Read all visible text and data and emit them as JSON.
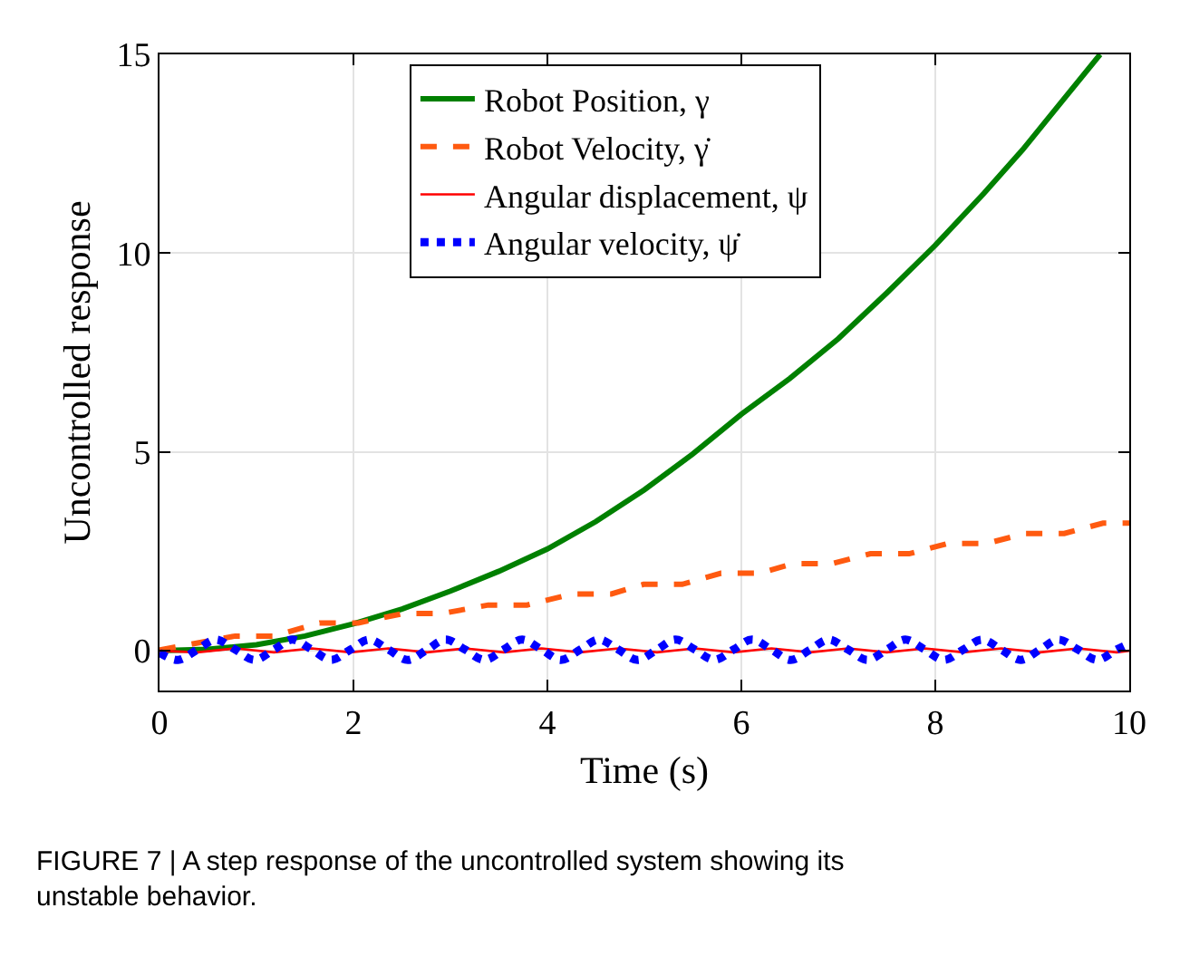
{
  "chart_data": {
    "type": "line",
    "xlabel": "Time (s)",
    "ylabel": "Uncontrolled response",
    "xlim": [
      0,
      10
    ],
    "ylim": [
      -1,
      15
    ],
    "xticks": [
      0,
      2,
      4,
      6,
      8,
      10
    ],
    "yticks": [
      0,
      5,
      10,
      15
    ],
    "grid": true,
    "legend": "top",
    "marker": "none",
    "annotations": [
      "FIGURE 7 | A step response of the uncontrolled system showing its unstable behavior."
    ],
    "series": [
      {
        "name": "Robot Position, γ",
        "color": "#008000",
        "line_style": "solid",
        "x": [
          0,
          0.5,
          1,
          1.5,
          2,
          2.5,
          3,
          3.5,
          4,
          4.5,
          5,
          5.5,
          6,
          6.5,
          7,
          7.5,
          8,
          8.5,
          8.9,
          9.3,
          9.7
        ],
        "values": [
          0,
          0.04,
          0.15,
          0.37,
          0.68,
          1.05,
          1.5,
          2.0,
          2.56,
          3.25,
          4.05,
          4.95,
          5.95,
          6.85,
          7.85,
          9.0,
          10.2,
          11.5,
          12.6,
          13.8,
          15
        ]
      },
      {
        "name": "Robot Velocity, γ̇",
        "color": "#ff5a10",
        "line_style": "dashed",
        "x": [
          0,
          0.78,
          1.18,
          1.65,
          2.05,
          2.52,
          2.92,
          3.39,
          3.79,
          4.26,
          4.66,
          4.99,
          5.39,
          5.79,
          6.19,
          6.53,
          6.93,
          7.33,
          7.73,
          8.13,
          8.53,
          8.93,
          9.33,
          9.73,
          10
        ],
        "values": [
          0.02,
          0.37,
          0.37,
          0.7,
          0.7,
          0.94,
          0.94,
          1.15,
          1.15,
          1.43,
          1.43,
          1.67,
          1.67,
          1.95,
          1.95,
          2.19,
          2.19,
          2.44,
          2.44,
          2.7,
          2.7,
          2.95,
          2.95,
          3.21,
          3.21
        ]
      },
      {
        "name": "Angular displacement, ψ",
        "color": "#ff0000",
        "line_style": "solid",
        "x": [
          0,
          0.39,
          0.78,
          1.18,
          1.57,
          1.97,
          2.36,
          2.76,
          3.15,
          3.55,
          3.94,
          4.34,
          4.73,
          5.13,
          5.52,
          5.92,
          6.31,
          6.71,
          7.1,
          7.5,
          7.89,
          8.29,
          8.68,
          9.08,
          9.47,
          9.87,
          10
        ],
        "values": [
          0,
          -0.04,
          0.06,
          -0.04,
          0.06,
          -0.04,
          0.06,
          -0.04,
          0.06,
          -0.04,
          0.06,
          -0.04,
          0.06,
          -0.04,
          0.06,
          -0.04,
          0.06,
          -0.04,
          0.06,
          -0.04,
          0.06,
          -0.04,
          0.06,
          -0.04,
          0.06,
          -0.04,
          0
        ]
      },
      {
        "name": "Angular velocity, ψ̇",
        "color": "#0000ff",
        "line_style": "dotted",
        "x": [
          0,
          0.19,
          0.39,
          0.58,
          0.78,
          0.98,
          1.18,
          1.37,
          1.57,
          1.77,
          1.97,
          2.16,
          2.36,
          2.56,
          2.76,
          2.95,
          3.15,
          3.35,
          3.55,
          3.74,
          3.94,
          4.14,
          4.34,
          4.53,
          4.73,
          4.93,
          5.13,
          5.32,
          5.52,
          5.72,
          5.92,
          6.11,
          6.31,
          6.51,
          6.71,
          6.9,
          7.1,
          7.3,
          7.5,
          7.69,
          7.89,
          8.09,
          8.29,
          8.48,
          8.68,
          8.88,
          9.08,
          9.27,
          9.47,
          9.67,
          9.87,
          10
        ],
        "values": [
          -0.05,
          -0.23,
          0.03,
          0.28,
          0.03,
          -0.23,
          0.03,
          0.28,
          0.03,
          -0.23,
          0.03,
          0.28,
          0.03,
          -0.23,
          0.03,
          0.28,
          0.03,
          -0.23,
          0.03,
          0.28,
          0.03,
          -0.23,
          0.03,
          0.28,
          0.03,
          -0.23,
          0.03,
          0.28,
          0.03,
          -0.23,
          0.03,
          0.28,
          0.03,
          -0.23,
          0.03,
          0.28,
          0.03,
          -0.23,
          0.03,
          0.28,
          0.03,
          -0.23,
          0.03,
          0.28,
          0.03,
          -0.23,
          0.03,
          0.28,
          0.03,
          -0.23,
          0.03,
          0.18
        ]
      }
    ]
  }
}
